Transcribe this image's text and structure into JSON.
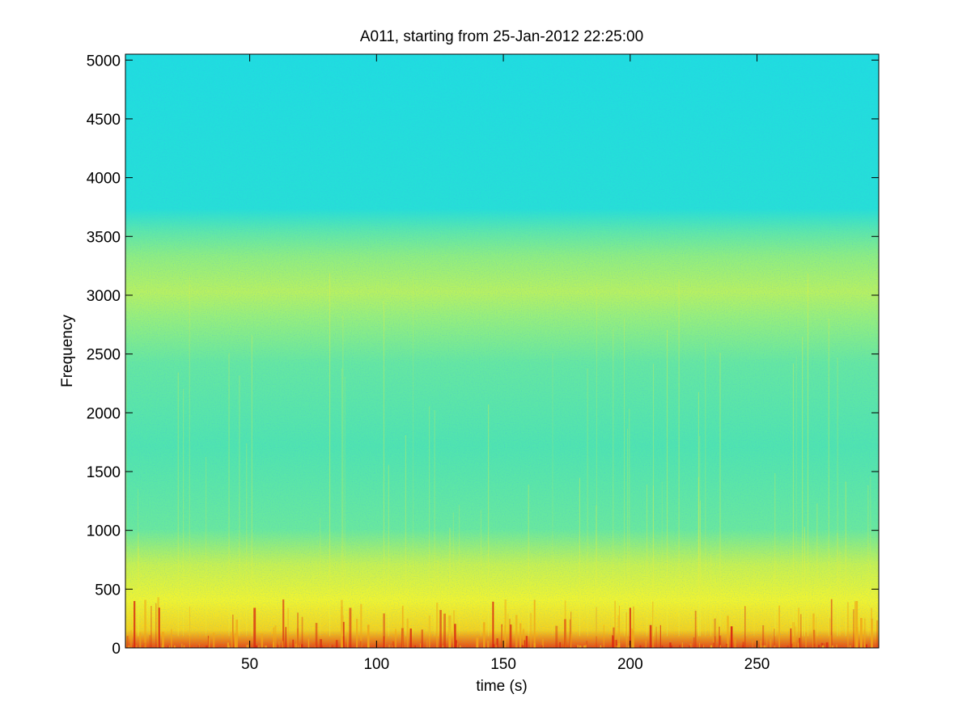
{
  "chart_data": {
    "type": "heatmap",
    "title": "A011, starting from 25-Jan-2012 22:25:00",
    "xlabel": "time (s)",
    "ylabel": "Frequency",
    "xlim": [
      1,
      298
    ],
    "ylim": [
      0,
      5050
    ],
    "x_ticks": [
      50,
      100,
      150,
      200,
      250
    ],
    "y_ticks": [
      0,
      500,
      1000,
      1500,
      2000,
      2500,
      3000,
      3500,
      4000,
      4500,
      5000
    ],
    "grid": false,
    "colormap": "jet",
    "energy_bands": [
      {
        "freq_range": [
          3600,
          5050
        ],
        "level": "low",
        "color": "#22e0e0"
      },
      {
        "freq_range": [
          2600,
          3100
        ],
        "level": "elevated",
        "color": "#b8f060"
      },
      {
        "freq_range": [
          200,
          700
        ],
        "level": "high",
        "color": "#f0f030"
      },
      {
        "freq_range": [
          0,
          120
        ],
        "level": "peak",
        "color": "#e02010"
      }
    ]
  }
}
